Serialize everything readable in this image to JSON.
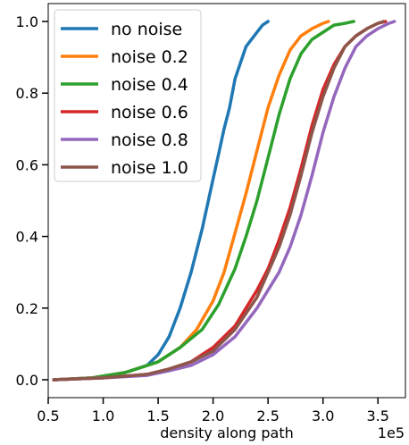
{
  "chart_data": {
    "type": "line",
    "title": "",
    "xlabel": "density along path",
    "ylabel": "",
    "x_offset_label": "1e5",
    "xlim": [
      0.5,
      3.75
    ],
    "ylim": [
      -0.05,
      1.05
    ],
    "x_ticks": [
      0.5,
      1.0,
      1.5,
      2.0,
      2.5,
      3.0,
      3.5
    ],
    "x_tick_labels": [
      "0.5",
      "1.0",
      "1.5",
      "2.0",
      "2.5",
      "3.0",
      "3.5"
    ],
    "y_ticks": [
      0.0,
      0.2,
      0.4,
      0.6,
      0.8,
      1.0
    ],
    "y_tick_labels": [
      "0.0",
      "0.2",
      "0.4",
      "0.6",
      "0.8",
      "1.0"
    ],
    "grid": false,
    "legend_position": "top-left",
    "series": [
      {
        "name": "no noise",
        "color": "#1f77b4",
        "x": [
          0.55,
          0.9,
          1.2,
          1.4,
          1.5,
          1.6,
          1.7,
          1.8,
          1.9,
          2.0,
          2.05,
          2.1,
          2.15,
          2.2,
          2.3,
          2.4,
          2.45,
          2.5
        ],
        "y": [
          0.0,
          0.005,
          0.02,
          0.04,
          0.07,
          0.12,
          0.2,
          0.3,
          0.42,
          0.56,
          0.63,
          0.7,
          0.76,
          0.84,
          0.93,
          0.97,
          0.99,
          1.0
        ]
      },
      {
        "name": "noise 0.2",
        "color": "#ff7f0e",
        "x": [
          0.55,
          0.9,
          1.2,
          1.5,
          1.7,
          1.85,
          2.0,
          2.1,
          2.2,
          2.3,
          2.4,
          2.5,
          2.6,
          2.7,
          2.8,
          2.9,
          3.0,
          3.05
        ],
        "y": [
          0.0,
          0.005,
          0.02,
          0.05,
          0.09,
          0.14,
          0.22,
          0.3,
          0.41,
          0.52,
          0.64,
          0.76,
          0.85,
          0.92,
          0.96,
          0.98,
          0.995,
          1.0
        ]
      },
      {
        "name": "noise 0.4",
        "color": "#2ca02c",
        "x": [
          0.55,
          0.9,
          1.0,
          1.2,
          1.5,
          1.7,
          1.9,
          2.05,
          2.2,
          2.3,
          2.4,
          2.5,
          2.6,
          2.7,
          2.8,
          2.9,
          3.0,
          3.1,
          3.2,
          3.28
        ],
        "y": [
          0.0,
          0.005,
          0.01,
          0.02,
          0.05,
          0.09,
          0.14,
          0.21,
          0.31,
          0.4,
          0.5,
          0.62,
          0.74,
          0.84,
          0.91,
          0.95,
          0.97,
          0.99,
          0.995,
          1.0
        ]
      },
      {
        "name": "noise 0.6",
        "color": "#d62728",
        "x": [
          0.55,
          1.0,
          1.4,
          1.6,
          1.8,
          2.0,
          2.2,
          2.4,
          2.5,
          2.6,
          2.7,
          2.8,
          2.9,
          3.0,
          3.1,
          3.2,
          3.3,
          3.4,
          3.5,
          3.57
        ],
        "y": [
          0.0,
          0.005,
          0.015,
          0.03,
          0.05,
          0.09,
          0.15,
          0.25,
          0.31,
          0.39,
          0.48,
          0.59,
          0.71,
          0.81,
          0.88,
          0.93,
          0.96,
          0.98,
          0.995,
          1.0
        ]
      },
      {
        "name": "noise 0.8",
        "color": "#9467bd",
        "x": [
          0.55,
          1.0,
          1.4,
          1.6,
          1.8,
          2.0,
          2.2,
          2.4,
          2.6,
          2.7,
          2.8,
          2.9,
          3.0,
          3.1,
          3.2,
          3.3,
          3.4,
          3.5,
          3.6,
          3.65
        ],
        "y": [
          0.0,
          0.005,
          0.012,
          0.025,
          0.04,
          0.07,
          0.12,
          0.2,
          0.3,
          0.37,
          0.46,
          0.57,
          0.69,
          0.79,
          0.87,
          0.93,
          0.96,
          0.98,
          0.995,
          1.0
        ]
      },
      {
        "name": "noise 1.0",
        "color": "#8c564b",
        "x": [
          0.55,
          1.0,
          1.4,
          1.6,
          1.8,
          2.0,
          2.2,
          2.4,
          2.5,
          2.6,
          2.7,
          2.8,
          2.9,
          3.0,
          3.1,
          3.2,
          3.3,
          3.4,
          3.5,
          3.55
        ],
        "y": [
          0.0,
          0.005,
          0.015,
          0.03,
          0.05,
          0.08,
          0.14,
          0.23,
          0.3,
          0.37,
          0.46,
          0.57,
          0.69,
          0.79,
          0.87,
          0.93,
          0.96,
          0.98,
          0.995,
          1.0
        ]
      }
    ]
  }
}
